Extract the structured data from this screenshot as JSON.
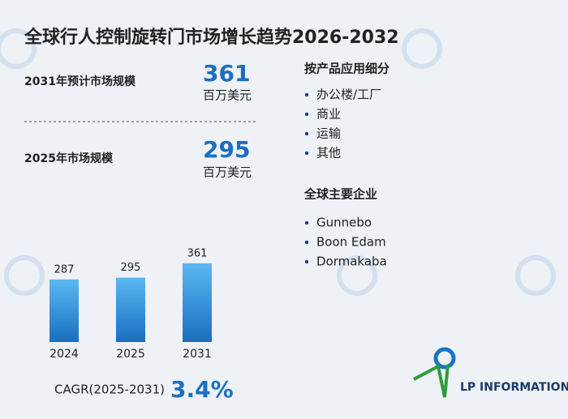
{
  "header": {
    "title": "全球行人控制旋转门市场增长趋势2026-2032"
  },
  "stats": [
    {
      "label": "2031年预计市场规模",
      "value": 361,
      "unit": "百万美元"
    },
    {
      "label": "2025年市场规模",
      "value": 295,
      "unit": "百万美元"
    }
  ],
  "segments": {
    "title": "按产品应用细分",
    "items": [
      "办公楼/工厂",
      "商业",
      "运输",
      "其他"
    ]
  },
  "companies": {
    "title": "全球主要企业",
    "items": [
      "Gunnebo",
      "Boon Edam",
      "Dormakaba"
    ]
  },
  "chart_data": {
    "type": "bar",
    "categories": [
      "2024",
      "2025",
      "2031"
    ],
    "values": [
      287,
      295,
      361
    ],
    "color": "#1a73c8"
  },
  "cagr": {
    "label": "CAGR(2025-2031)",
    "value": "3.4%"
  },
  "logo": {
    "text": "LP INFORMATION"
  }
}
